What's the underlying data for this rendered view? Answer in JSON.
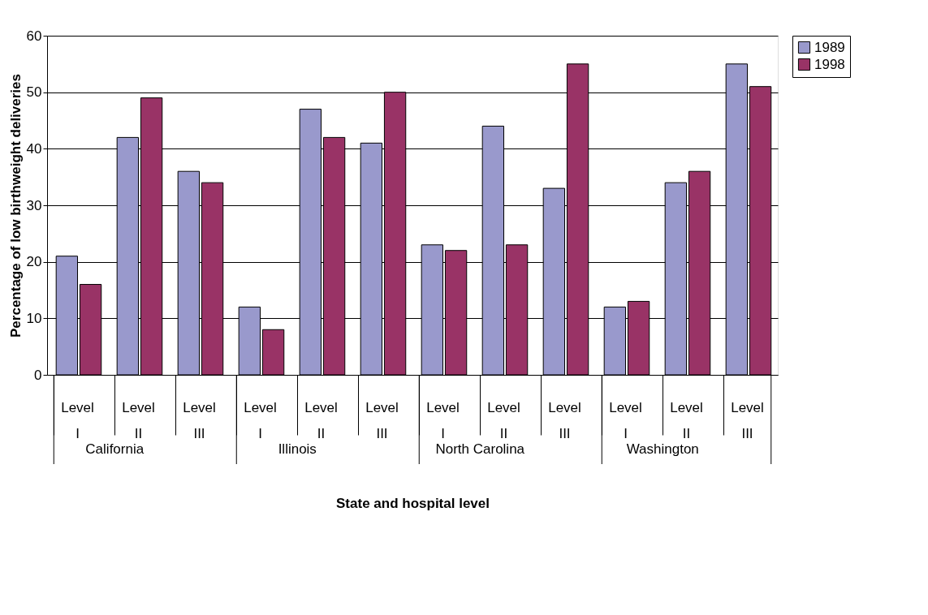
{
  "chart_data": {
    "type": "bar",
    "xlabel": "State and hospital level",
    "ylabel": "Percentage of low birthweight deliveries",
    "categories": [
      "Level I",
      "Level II",
      "Level III",
      "Level I",
      "Level II",
      "Level III",
      "Level I",
      "Level II",
      "Level III",
      "Level I",
      "Level II",
      "Level III"
    ],
    "annotations": [
      "California",
      "Illinois",
      "North Carolina",
      "Washington"
    ],
    "series": [
      {
        "name": "1989",
        "color": "#9999cc",
        "values": [
          21,
          42,
          36,
          12,
          47,
          41,
          23,
          44,
          33,
          12,
          34,
          55
        ]
      },
      {
        "name": "1998",
        "color": "#993366",
        "values": [
          16,
          49,
          34,
          8,
          42,
          50,
          22,
          23,
          55,
          13,
          36,
          51
        ]
      }
    ],
    "ylim": [
      0,
      60
    ],
    "yticks": [
      0,
      10,
      20,
      30,
      40,
      50,
      60
    ],
    "grid": "y",
    "legend": "right"
  }
}
